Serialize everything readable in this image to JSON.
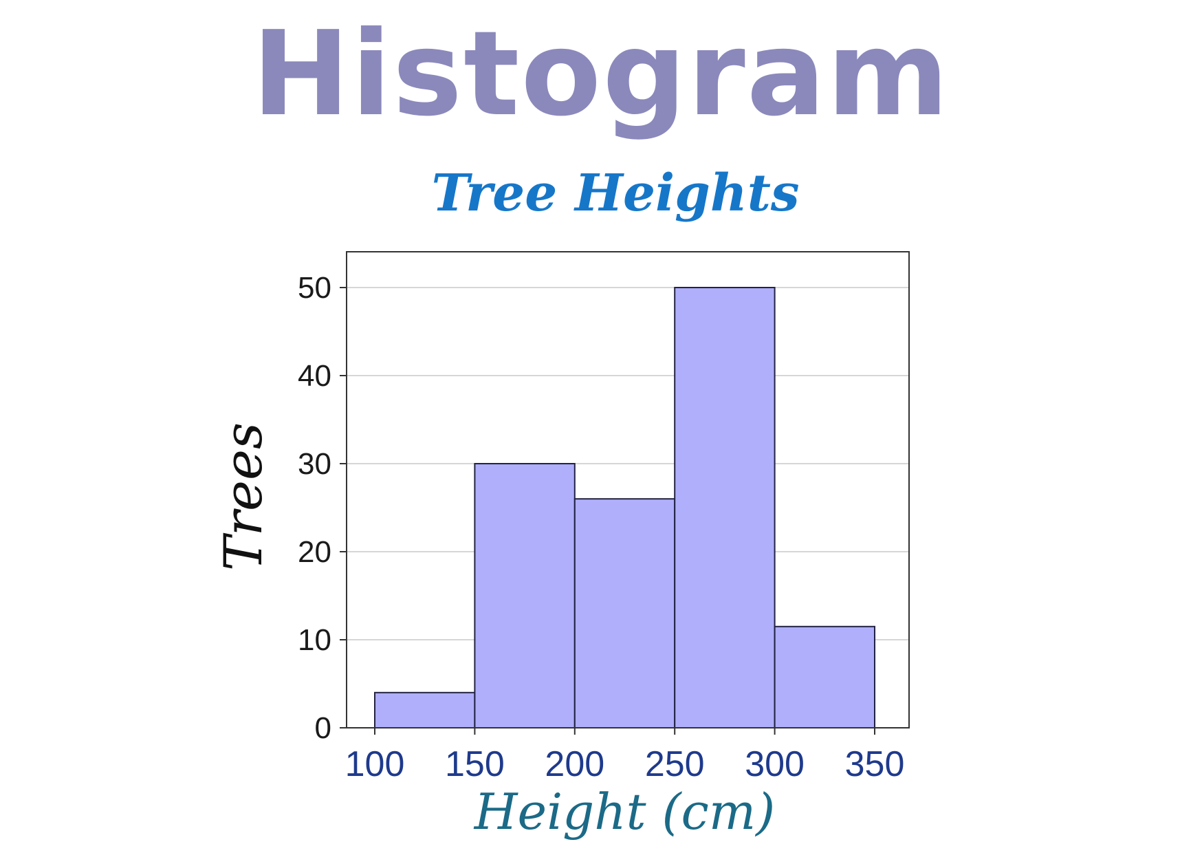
{
  "page": {
    "heading": "Histogram"
  },
  "colors": {
    "heading": "#8b89bb",
    "chart_title": "#1677c9",
    "bar_fill": "#afaffc",
    "bar_stroke": "#222244",
    "x_tick_text": "#1e3a8c",
    "x_axis_title": "#1b6a87",
    "y_axis_title": "#111111",
    "grid": "#c8c8c8"
  },
  "chart_data": {
    "type": "histogram",
    "title": "Tree Heights",
    "xlabel": "Height (cm)",
    "ylabel": "Trees",
    "bins": [
      {
        "from": 100,
        "to": 150,
        "count": 4
      },
      {
        "from": 150,
        "to": 200,
        "count": 30
      },
      {
        "from": 200,
        "to": 250,
        "count": 26
      },
      {
        "from": 250,
        "to": 300,
        "count": 50
      },
      {
        "from": 300,
        "to": 350,
        "count": 11.5
      }
    ],
    "x_ticks": [
      "100",
      "150",
      "200",
      "250",
      "300",
      "350"
    ],
    "y_ticks": [
      "0",
      "10",
      "20",
      "30",
      "40",
      "50"
    ],
    "xlim": [
      100,
      350
    ],
    "ylim": [
      0,
      50
    ],
    "grid": true
  }
}
